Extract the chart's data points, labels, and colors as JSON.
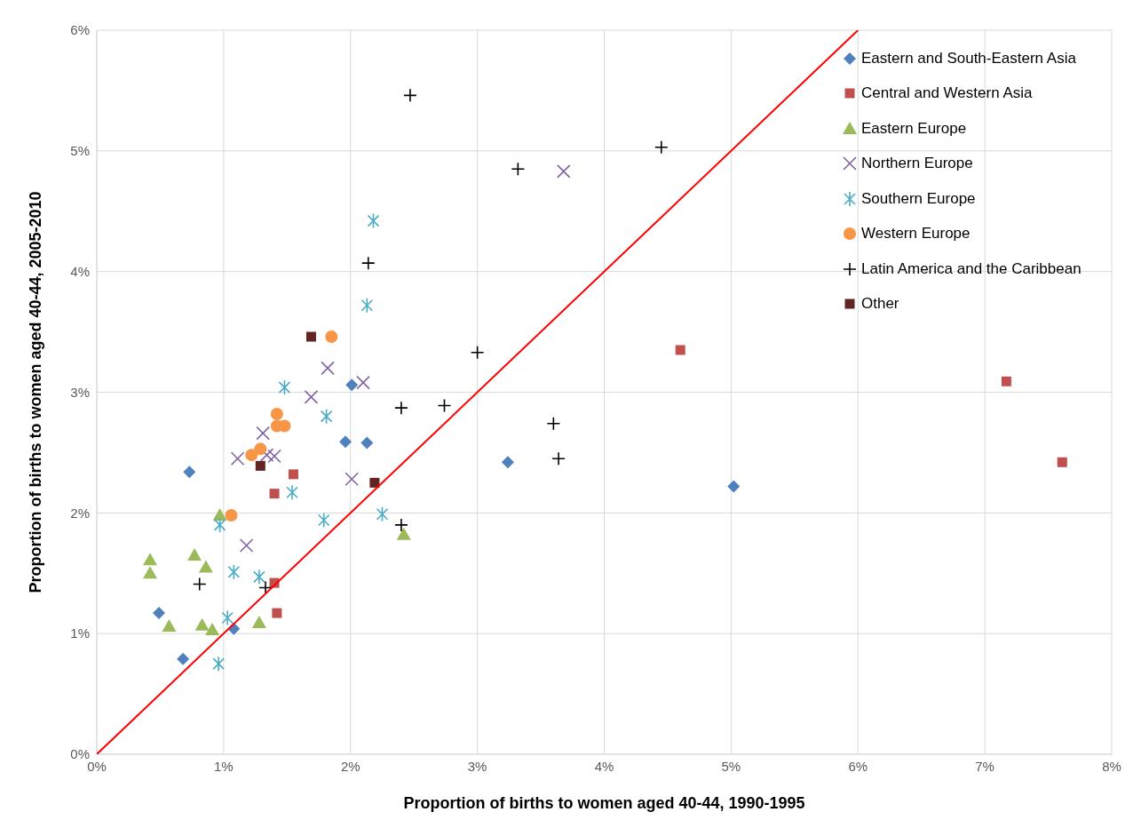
{
  "chart_data": {
    "type": "scatter",
    "xlabel": "Proportion of births to women aged 40-44, 1990-1995",
    "ylabel": "Proportion of births to women aged 40-44, 2005-2010",
    "xlim": [
      0,
      8
    ],
    "xticks": [
      {
        "value": 0,
        "label": "0%"
      },
      {
        "value": 1,
        "label": "1%"
      },
      {
        "value": 2,
        "label": "2%"
      },
      {
        "value": 3,
        "label": "3%"
      },
      {
        "value": 4,
        "label": "4%"
      },
      {
        "value": 5,
        "label": "5%"
      },
      {
        "value": 6,
        "label": "6%"
      },
      {
        "value": 7,
        "label": "7%"
      },
      {
        "value": 8,
        "label": "8%"
      }
    ],
    "ylim": [
      0,
      6
    ],
    "yticks": [
      {
        "value": 0,
        "label": "0%"
      },
      {
        "value": 1,
        "label": "1%"
      },
      {
        "value": 2,
        "label": "2%"
      },
      {
        "value": 3,
        "label": "3%"
      },
      {
        "value": 4,
        "label": "4%"
      },
      {
        "value": 5,
        "label": "5%"
      },
      {
        "value": 6,
        "label": "6%"
      }
    ],
    "grid": true,
    "legend": "top right",
    "series": [
      {
        "name": "Eastern and South-Eastern Asia",
        "color": "#4f81bd",
        "marker": "diamond",
        "x": [
          2.01,
          1.96,
          2.13,
          0.73,
          0.49,
          1.08,
          0.68,
          3.24,
          5.02
        ],
        "values": [
          3.06,
          2.59,
          2.58,
          2.34,
          1.17,
          1.04,
          0.79,
          2.42,
          2.22
        ]
      },
      {
        "name": "Central and Western Asia",
        "color": "#c0504d",
        "marker": "square",
        "x": [
          1.55,
          1.4,
          1.4,
          1.42,
          4.6,
          7.17,
          7.61
        ],
        "values": [
          2.32,
          2.16,
          1.42,
          1.17,
          3.35,
          3.09,
          2.42
        ]
      },
      {
        "name": "Eastern Europe",
        "color": "#9bbb59",
        "marker": "triangle",
        "x": [
          0.97,
          0.42,
          0.42,
          0.77,
          0.86,
          0.57,
          0.83,
          0.91,
          1.28,
          2.42
        ],
        "values": [
          1.98,
          1.61,
          1.5,
          1.65,
          1.55,
          1.06,
          1.07,
          1.03,
          1.09,
          1.82
        ]
      },
      {
        "name": "Northern Europe",
        "color": "#8064a2",
        "marker": "cross",
        "x": [
          1.82,
          2.1,
          1.69,
          1.31,
          1.11,
          1.34,
          1.4,
          2.01,
          1.18,
          3.68
        ],
        "values": [
          3.2,
          3.08,
          2.96,
          2.66,
          2.45,
          2.48,
          2.47,
          2.28,
          1.73,
          4.83
        ]
      },
      {
        "name": "Southern Europe",
        "color": "#4bacc6",
        "x": [
          1.48,
          1.81,
          1.54,
          2.25,
          1.79,
          0.97,
          1.08,
          1.28,
          1.03,
          0.96,
          2.18,
          2.13
        ],
        "values": [
          3.04,
          2.8,
          2.17,
          1.99,
          1.94,
          1.9,
          1.51,
          1.47,
          1.13,
          0.75,
          4.42,
          3.72
        ]
      },
      {
        "name": "Western Europe",
        "color": "#f79646",
        "marker": "circle",
        "x": [
          1.42,
          1.42,
          1.48,
          1.29,
          1.22,
          1.06,
          1.85
        ],
        "values": [
          2.82,
          2.72,
          2.72,
          2.53,
          2.48,
          1.98,
          3.46
        ]
      },
      {
        "name": "Latin America and the Caribbean",
        "color": "#000000",
        "marker": "plus",
        "x": [
          2.47,
          3.32,
          2.14,
          3.0,
          4.45,
          2.4,
          2.74,
          3.6,
          3.64,
          2.4,
          0.81,
          1.33
        ],
        "values": [
          5.46,
          4.85,
          4.07,
          3.33,
          5.03,
          2.87,
          2.89,
          2.74,
          2.45,
          1.9,
          1.41,
          1.38
        ]
      },
      {
        "name": "Other",
        "color": "#632523",
        "marker": "square",
        "x": [
          1.69,
          1.29,
          2.19
        ],
        "values": [
          3.46,
          2.39,
          2.25
        ]
      },
      {
        "type": "line",
        "color": "#ff0000",
        "marker": "none",
        "x": [
          0,
          6
        ],
        "values": [
          0,
          6
        ]
      }
    ]
  }
}
